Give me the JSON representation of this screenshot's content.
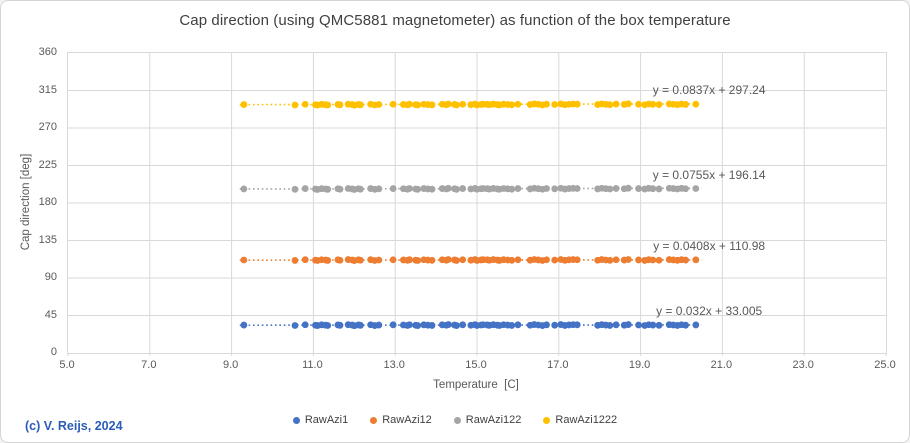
{
  "chart": {
    "title": "Cap direction (using QMC5881 magnetometer) as function of the box temperature",
    "copyright": "(c) V. Reijs, 2024",
    "grid_color": "#d9d9d9",
    "text_color": "#595959",
    "x_axis": {
      "title": "Temperature  [C]",
      "tick_values": [
        5,
        7,
        9,
        11,
        13,
        15,
        17,
        19,
        21,
        23,
        25
      ],
      "tick_labels": [
        "5.0",
        "7.0",
        "9.0",
        "11.0",
        "13.0",
        "15.0",
        "17.0",
        "19.0",
        "21.0",
        "23.0",
        "25.0"
      ]
    },
    "y_axis": {
      "title": "Cap direction [deg]",
      "tick_values": [
        0,
        45,
        90,
        135,
        180,
        225,
        270,
        315,
        360
      ],
      "tick_labels": [
        "0",
        "45",
        "90",
        "135",
        "180",
        "225",
        "270",
        "315",
        "360"
      ]
    }
  },
  "chart_data": {
    "type": "scatter",
    "xlabel": "Temperature  [C]",
    "ylabel": "Cap direction [deg]",
    "xlim": [
      5,
      25
    ],
    "ylim": [
      0,
      360
    ],
    "grid": true,
    "legend_position": "bottom",
    "trend_x_range": [
      9.2,
      20.5
    ],
    "x": [
      9.3,
      10.55,
      10.8,
      11.05,
      11.1,
      11.2,
      11.3,
      11.35,
      11.6,
      11.65,
      11.85,
      11.95,
      12.0,
      12.1,
      12.15,
      12.4,
      12.5,
      12.6,
      12.95,
      13.2,
      13.3,
      13.35,
      13.5,
      13.55,
      13.7,
      13.8,
      13.9,
      14.15,
      14.25,
      14.3,
      14.45,
      14.5,
      14.65,
      14.85,
      14.95,
      15.0,
      15.1,
      15.15,
      15.25,
      15.3,
      15.4,
      15.5,
      15.55,
      15.65,
      15.75,
      15.85,
      16.0,
      16.3,
      16.4,
      16.5,
      16.6,
      16.7,
      16.9,
      17.05,
      17.15,
      17.25,
      17.35,
      17.45,
      17.95,
      18.05,
      18.15,
      18.25,
      18.4,
      18.6,
      18.7,
      18.95,
      19.1,
      19.2,
      19.3,
      19.45,
      19.7,
      19.8,
      19.9,
      20.0,
      20.1,
      20.35
    ],
    "series": [
      {
        "name": "RawAzi1",
        "color": "#4472c4",
        "trend": {
          "slope": 0.032,
          "intercept": 33.005,
          "label": "y = 0.032x + 33.005"
        },
        "y": [
          33.5,
          33.0,
          33.9,
          33.3,
          32.9,
          33.8,
          33.4,
          33.0,
          33.7,
          33.2,
          34.0,
          33.5,
          32.8,
          33.7,
          33.2,
          33.9,
          32.9,
          33.5,
          33.8,
          33.6,
          33.1,
          33.9,
          33.3,
          32.9,
          33.8,
          33.4,
          33.1,
          33.8,
          33.3,
          34.1,
          33.6,
          32.9,
          33.8,
          33.3,
          34.0,
          33.0,
          33.6,
          33.9,
          33.7,
          33.2,
          34.0,
          33.4,
          33.0,
          33.9,
          33.5,
          33.1,
          33.8,
          33.3,
          34.1,
          33.6,
          32.9,
          33.8,
          33.4,
          34.1,
          33.1,
          33.7,
          34.0,
          33.8,
          33.2,
          34.0,
          33.5,
          33.1,
          33.8,
          33.4,
          34.1,
          33.6,
          33.0,
          33.9,
          33.5,
          33.2,
          34.0,
          33.6,
          33.1,
          33.9,
          33.4,
          33.7
        ]
      },
      {
        "name": "RawAzi12",
        "color": "#ed7d31",
        "trend": {
          "slope": 0.0408,
          "intercept": 110.98,
          "label": "y = 0.0408x + 110.98"
        },
        "y": [
          111.6,
          111.1,
          112.0,
          111.4,
          111.0,
          111.9,
          111.5,
          111.1,
          111.8,
          111.3,
          112.1,
          111.6,
          110.9,
          111.8,
          111.3,
          112.0,
          111.0,
          111.6,
          111.9,
          111.7,
          111.2,
          112.0,
          111.4,
          111.0,
          111.9,
          111.5,
          111.2,
          111.9,
          111.4,
          112.2,
          111.7,
          111.0,
          111.9,
          111.4,
          112.1,
          111.1,
          111.7,
          112.0,
          111.8,
          111.3,
          112.1,
          111.5,
          111.1,
          112.0,
          111.6,
          111.2,
          111.9,
          111.4,
          112.2,
          111.7,
          111.0,
          111.9,
          111.5,
          112.2,
          111.2,
          111.8,
          112.1,
          111.9,
          111.3,
          112.1,
          111.6,
          111.2,
          111.9,
          111.5,
          112.2,
          111.7,
          111.1,
          112.0,
          111.6,
          111.3,
          112.1,
          111.7,
          111.2,
          112.0,
          111.5,
          111.8
        ]
      },
      {
        "name": "RawAzi122",
        "color": "#a5a5a5",
        "trend": {
          "slope": 0.0755,
          "intercept": 196.14,
          "label": "y = 0.0755x + 196.14"
        },
        "y": [
          196.9,
          196.4,
          197.3,
          196.7,
          196.3,
          197.2,
          196.8,
          196.4,
          197.1,
          196.6,
          197.4,
          196.9,
          196.2,
          197.1,
          196.6,
          197.3,
          196.4,
          197.0,
          197.3,
          197.1,
          196.6,
          197.4,
          196.8,
          196.4,
          197.3,
          196.9,
          196.6,
          197.3,
          196.8,
          197.6,
          197.1,
          196.4,
          197.3,
          196.8,
          197.5,
          196.5,
          197.1,
          197.4,
          197.2,
          196.7,
          197.5,
          196.9,
          196.5,
          197.4,
          197.0,
          196.6,
          197.3,
          196.9,
          197.7,
          197.2,
          196.5,
          197.4,
          197.0,
          197.7,
          196.7,
          197.3,
          197.6,
          197.4,
          196.9,
          197.7,
          197.2,
          196.8,
          197.5,
          197.1,
          197.8,
          197.3,
          196.7,
          197.6,
          197.2,
          196.9,
          197.7,
          197.3,
          196.8,
          197.6,
          197.1,
          197.4
        ]
      },
      {
        "name": "RawAzi1222",
        "color": "#ffc000",
        "trend": {
          "slope": 0.0837,
          "intercept": 297.24,
          "label": "y = 0.0837x + 297.24"
        },
        "y": [
          298.1,
          297.6,
          298.5,
          297.9,
          297.5,
          298.4,
          298.0,
          297.6,
          298.3,
          297.8,
          298.6,
          298.1,
          297.4,
          298.3,
          297.8,
          298.5,
          297.6,
          298.2,
          298.5,
          298.3,
          297.8,
          298.6,
          298.0,
          297.6,
          298.5,
          298.1,
          297.8,
          298.5,
          298.0,
          298.8,
          298.3,
          297.6,
          298.5,
          298.0,
          298.7,
          297.7,
          298.3,
          298.6,
          298.4,
          297.9,
          298.7,
          298.1,
          297.7,
          298.6,
          298.2,
          297.8,
          298.5,
          298.1,
          298.9,
          298.4,
          297.7,
          298.6,
          298.2,
          298.9,
          297.9,
          298.5,
          298.8,
          298.6,
          298.1,
          298.9,
          298.4,
          298.0,
          298.7,
          298.3,
          299.0,
          298.5,
          297.9,
          298.8,
          298.4,
          298.1,
          298.9,
          298.5,
          298.0,
          298.8,
          298.3,
          298.6
        ]
      }
    ]
  }
}
